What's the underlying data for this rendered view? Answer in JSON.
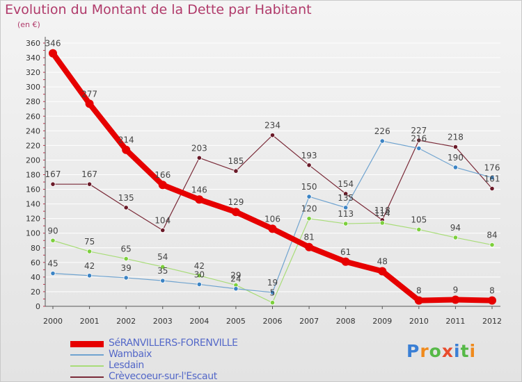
{
  "title": "Evolution du Montant de la Dette par Habitant",
  "unit": "(en €)",
  "logo": {
    "text": "Proxiti",
    "colors": [
      "#3a7fd5",
      "#f08a1c",
      "#56b947",
      "#e84b2c",
      "#3a7fd5",
      "#56b947",
      "#f08a1c"
    ]
  },
  "colors": {
    "title": "#b03a6a",
    "legend_text": "#5468c8",
    "axis": "#555555",
    "grid": "#ffffff"
  },
  "chart_data": {
    "type": "line",
    "categories": [
      "2000",
      "2001",
      "2002",
      "2003",
      "2004",
      "2005",
      "2006",
      "2007",
      "2008",
      "2009",
      "2010",
      "2011",
      "2012"
    ],
    "ylim": [
      0,
      360
    ],
    "yticks": [
      0,
      20,
      40,
      60,
      80,
      100,
      120,
      140,
      160,
      180,
      200,
      220,
      240,
      260,
      280,
      300,
      320,
      340,
      360
    ],
    "grid": true,
    "legend_position": "bottom-left",
    "series": [
      {
        "name": "SéRANVILLERS-FORENVILLE",
        "color": "#e60000",
        "width": 8,
        "marker": "#e60000",
        "values": [
          346,
          277,
          214,
          166,
          146,
          129,
          106,
          81,
          61,
          48,
          8,
          9,
          8
        ]
      },
      {
        "name": "Wambaix",
        "color": "#6fa3cf",
        "width": 1.2,
        "marker": "#3b83c4",
        "values": [
          45,
          42,
          39,
          35,
          30,
          24,
          19,
          150,
          135,
          226,
          216,
          190,
          176
        ]
      },
      {
        "name": "Lesdain",
        "color": "#a8dc78",
        "width": 1.2,
        "marker": "#7ccf3c",
        "values": [
          90,
          75,
          65,
          54,
          42,
          29,
          5,
          120,
          113,
          114,
          105,
          94,
          84
        ]
      },
      {
        "name": "Crèvecoeur-sur-l'Escaut",
        "color": "#7a2a38",
        "width": 1.2,
        "marker": "#6a1a28",
        "values": [
          167,
          167,
          135,
          104,
          203,
          185,
          234,
          193,
          154,
          118,
          227,
          218,
          161
        ]
      }
    ]
  }
}
